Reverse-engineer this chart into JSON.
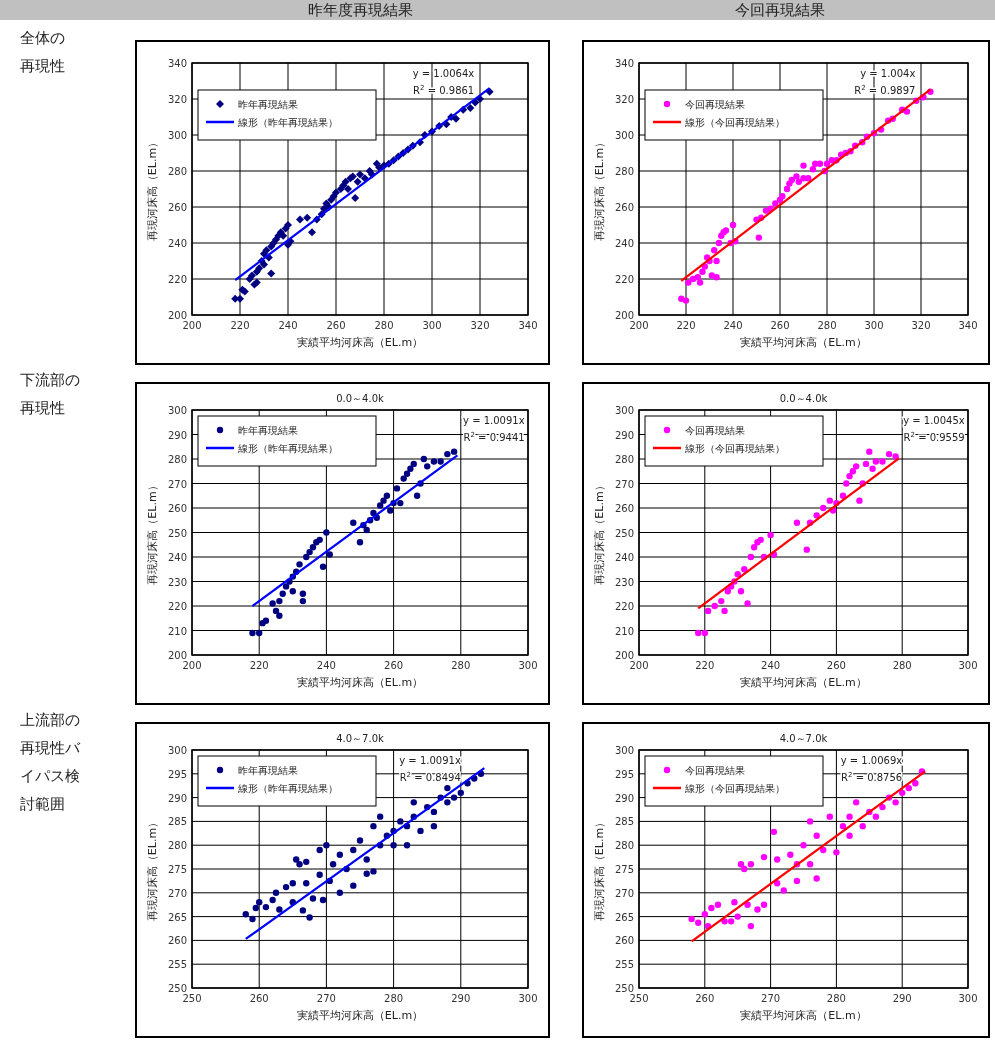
{
  "chart_data": [
    {
      "type": "scatter",
      "xlabel": "実績平均河床高（EL.m）",
      "ylabel": "再現河床高（EL.m）",
      "xlim": [
        200,
        340
      ],
      "ylim": [
        200,
        340
      ],
      "xticks": [
        200,
        220,
        240,
        260,
        280,
        300,
        320,
        340
      ],
      "yticks": [
        200,
        220,
        240,
        260,
        280,
        300,
        320,
        340
      ],
      "grid": true,
      "legend": "top left",
      "annotations": [
        "y = 1.0064x",
        "R$^{2}$ = 0.9861",
        "昨年度再現結果",
        "全体の再現性"
      ],
      "series": [
        {
          "name": "昨年再現結果",
          "type": "scatter",
          "marker": "diamond",
          "color": "#000080",
          "x": [
            218,
            220,
            221,
            222,
            224,
            225,
            226,
            227,
            227,
            228,
            229,
            230,
            230,
            231,
            232,
            233,
            233,
            234,
            235,
            236,
            237,
            238,
            239,
            240,
            241,
            240,
            245,
            248,
            250,
            252,
            254,
            255,
            256,
            257,
            258,
            259,
            260,
            262,
            263,
            264,
            265,
            266,
            267,
            268,
            269,
            270,
            272,
            274,
            275,
            277,
            278,
            280,
            282,
            284,
            286,
            288,
            290,
            292,
            295,
            297,
            300,
            303,
            306,
            308,
            310,
            313,
            316,
            318,
            320,
            324
          ],
          "values": [
            209,
            209,
            214,
            213,
            220,
            222,
            217,
            218,
            224,
            226,
            230,
            228,
            234,
            236,
            232,
            238,
            223,
            240,
            242,
            244,
            246,
            244,
            248,
            250,
            241,
            239,
            253,
            254,
            246,
            253,
            256,
            259,
            262,
            260,
            264,
            266,
            268,
            270,
            272,
            274,
            270,
            276,
            277,
            265,
            274,
            278,
            276,
            280,
            278,
            284,
            282,
            283,
            284,
            286,
            288,
            290,
            292,
            294,
            296,
            300,
            302,
            305,
            306,
            310,
            309,
            314,
            315,
            318,
            320,
            324
          ]
        },
        {
          "name": "線形（昨年再現結果）",
          "type": "line",
          "color": "#0000ff",
          "x": [
            218,
            324
          ],
          "values": [
            219.4,
            326.1
          ]
        }
      ]
    },
    {
      "type": "scatter",
      "xlabel": "実績平均河床高（EL.m）",
      "ylabel": "再現河床高（EL.m）",
      "xlim": [
        200,
        340
      ],
      "ylim": [
        200,
        340
      ],
      "xticks": [
        200,
        220,
        240,
        260,
        280,
        300,
        320,
        340
      ],
      "yticks": [
        200,
        220,
        240,
        260,
        280,
        300,
        320,
        340
      ],
      "grid": true,
      "legend": "top left",
      "annotations": [
        "y = 1.004x",
        "R$^{2}$ = 0.9897",
        "今回再現結果"
      ],
      "series": [
        {
          "name": "今回再現結果",
          "type": "scatter",
          "marker": "circle",
          "color": "#ff00ff",
          "x": [
            218,
            220,
            221,
            223,
            225,
            226,
            227,
            228,
            229,
            230,
            231,
            232,
            233,
            233,
            234,
            235,
            236,
            237,
            239,
            240,
            241,
            250,
            251,
            252,
            254,
            256,
            258,
            260,
            261,
            263,
            264,
            265,
            267,
            268,
            270,
            270,
            272,
            274,
            275,
            277,
            279,
            280,
            282,
            284,
            286,
            288,
            290,
            292,
            295,
            297,
            300,
            303,
            306,
            308,
            312,
            314,
            318,
            321,
            324
          ],
          "values": [
            209,
            208,
            218,
            220,
            221,
            218,
            224,
            227,
            232,
            230,
            222,
            236,
            221,
            230,
            240,
            244,
            246,
            247,
            240,
            250,
            241,
            253,
            243,
            254,
            258,
            259,
            262,
            264,
            266,
            270,
            273,
            275,
            277,
            274,
            283,
            276,
            276,
            281,
            284,
            284,
            280,
            284,
            286,
            286,
            289,
            290,
            291,
            294,
            296,
            299,
            301,
            303,
            308,
            309,
            314,
            313,
            319,
            321,
            324
          ]
        },
        {
          "name": "線形（今回再現結果）",
          "type": "line",
          "color": "#ff0000",
          "x": [
            218,
            324
          ],
          "values": [
            218.9,
            325.3
          ]
        }
      ]
    },
    {
      "type": "scatter",
      "title": "0.0～4.0k",
      "xlabel": "実績平均河床高（EL.m）",
      "ylabel": "再現河床高（EL.m）",
      "xlim": [
        200,
        300
      ],
      "ylim": [
        200,
        300
      ],
      "xticks": [
        200,
        220,
        240,
        260,
        280,
        300
      ],
      "yticks": [
        200,
        210,
        220,
        230,
        240,
        250,
        260,
        270,
        280,
        290,
        300
      ],
      "grid": true,
      "legend": "top left",
      "annotations": [
        "y = 1.0091x",
        "R$^{2}$ = 0.9441",
        "下流部の再現性"
      ],
      "series": [
        {
          "name": "昨年再現結果",
          "type": "scatter",
          "marker": "circle",
          "color": "#000080",
          "x": [
            218,
            220,
            221,
            222,
            224,
            225,
            226,
            226,
            227,
            228,
            229,
            230,
            230,
            231,
            232,
            233,
            233,
            234,
            235,
            236,
            237,
            238,
            239,
            240,
            241,
            248,
            250,
            251,
            252,
            253,
            254,
            255,
            256,
            257,
            258,
            259,
            260,
            261,
            262,
            263,
            264,
            265,
            266,
            267,
            268,
            269,
            270,
            272,
            274,
            276,
            278
          ],
          "values": [
            209,
            209,
            213,
            214,
            221,
            218,
            216,
            222,
            225,
            228,
            230,
            226,
            232,
            234,
            237,
            222,
            225,
            240,
            242,
            244,
            246,
            247,
            236,
            250,
            241,
            254,
            246,
            253,
            251,
            255,
            258,
            256,
            261,
            263,
            265,
            259,
            262,
            268,
            262,
            272,
            274,
            276,
            278,
            265,
            270,
            280,
            277,
            279,
            279,
            282,
            283
          ]
        },
        {
          "name": "線形（昨年再現結果）",
          "type": "line",
          "color": "#0000ff",
          "x": [
            218,
            279
          ],
          "values": [
            220.0,
            281.5
          ]
        }
      ]
    },
    {
      "type": "scatter",
      "title": "0.0～4.0k",
      "xlabel": "実績平均河床高（EL.m）",
      "ylabel": "再現河床高（EL.m）",
      "xlim": [
        200,
        300
      ],
      "ylim": [
        200,
        300
      ],
      "xticks": [
        200,
        220,
        240,
        260,
        280,
        300
      ],
      "yticks": [
        200,
        210,
        220,
        230,
        240,
        250,
        260,
        270,
        280,
        290,
        300
      ],
      "grid": true,
      "legend": "top left",
      "annotations": [
        "y = 1.0045x",
        "R$^{2}$ = 0.9559"
      ],
      "series": [
        {
          "name": "今回再現結果",
          "type": "scatter",
          "marker": "circle",
          "color": "#ff00ff",
          "x": [
            218,
            220,
            221,
            223,
            225,
            226,
            227,
            228,
            229,
            230,
            231,
            232,
            233,
            234,
            235,
            236,
            237,
            238,
            240,
            241,
            248,
            251,
            252,
            254,
            256,
            258,
            259,
            260,
            262,
            263,
            264,
            265,
            266,
            267,
            268,
            269,
            270,
            271,
            272,
            274,
            276,
            278
          ],
          "values": [
            209,
            209,
            218,
            220,
            222,
            218,
            226,
            228,
            230,
            233,
            226,
            235,
            221,
            240,
            244,
            246,
            247,
            240,
            249,
            241,
            254,
            243,
            254,
            257,
            260,
            263,
            259,
            262,
            265,
            270,
            273,
            275,
            277,
            263,
            270,
            278,
            283,
            276,
            279,
            279,
            282,
            281
          ]
        },
        {
          "name": "線形（今回再現結果）",
          "type": "line",
          "color": "#ff0000",
          "x": [
            218,
            279
          ],
          "values": [
            219.0,
            280.3
          ]
        }
      ]
    },
    {
      "type": "scatter",
      "title": "4.0～7.0k",
      "xlabel": "実績平均河床高（EL.m）",
      "ylabel": "再現河床高（EL.m）",
      "xlim": [
        250,
        300
      ],
      "ylim": [
        250,
        300
      ],
      "xticks": [
        250,
        260,
        270,
        280,
        290,
        300
      ],
      "yticks": [
        250,
        255,
        260,
        265,
        270,
        275,
        280,
        285,
        290,
        295,
        300
      ],
      "grid": true,
      "legend": "top left",
      "annotations": [
        "y = 1.0091x",
        "R$^{2}$ = 0.8494",
        "上流部の再現性バイパス検討範囲"
      ],
      "series": [
        {
          "name": "昨年再現結果",
          "type": "scatter",
          "marker": "circle",
          "color": "#000080",
          "x": [
            258,
            259,
            259.5,
            260,
            261,
            262,
            262.5,
            263,
            264,
            265,
            265,
            265.5,
            266,
            266.5,
            267,
            267,
            267.5,
            268,
            269,
            269,
            269.5,
            270,
            270.5,
            271,
            272,
            272,
            273,
            274,
            274,
            275,
            276,
            276,
            277,
            277,
            278,
            278,
            279,
            280,
            280,
            281,
            282,
            282,
            283,
            283,
            284,
            285,
            286,
            286,
            287,
            288,
            288,
            289,
            290,
            291,
            292,
            293
          ],
          "values": [
            265.5,
            264.5,
            266.8,
            268,
            267,
            268.5,
            270,
            266.5,
            271.2,
            272,
            268,
            277,
            276,
            266.3,
            272,
            276.5,
            264.8,
            268.8,
            279,
            273.8,
            268.5,
            280,
            272.5,
            276,
            270,
            278,
            275,
            271.5,
            279,
            281,
            277,
            274,
            284,
            274.5,
            286,
            280,
            282,
            283,
            280,
            285,
            284,
            280,
            289,
            286,
            283,
            288,
            287,
            284,
            290,
            289,
            292,
            290,
            291,
            293,
            294,
            295
          ]
        },
        {
          "name": "線形（昨年再現結果）",
          "type": "line",
          "color": "#0000ff",
          "x": [
            258,
            293.5
          ],
          "values": [
            260.3,
            296.2
          ]
        }
      ]
    },
    {
      "type": "scatter",
      "title": "4.0～7.0k",
      "xlabel": "実績平均河床高（EL.m）",
      "ylabel": "再現河床高（EL.m）",
      "xlim": [
        250,
        300
      ],
      "ylim": [
        250,
        300
      ],
      "xticks": [
        250,
        260,
        270,
        280,
        290,
        300
      ],
      "yticks": [
        250,
        255,
        260,
        265,
        270,
        275,
        280,
        285,
        290,
        295,
        300
      ],
      "grid": true,
      "legend": "top left",
      "annotations": [
        "y = 1.0069x",
        "R$^{2}$ = 0.8756"
      ],
      "series": [
        {
          "name": "今回再現結果",
          "type": "scatter",
          "marker": "circle",
          "color": "#ff00ff",
          "x": [
            258,
            259,
            260,
            260.5,
            261,
            262,
            263,
            264,
            264.5,
            265,
            265.5,
            266,
            266.5,
            267,
            267,
            268,
            269,
            269,
            270.5,
            271,
            271,
            272,
            273,
            274,
            274,
            275,
            276,
            276,
            277,
            277,
            278,
            279,
            280,
            281,
            282,
            282,
            283,
            284,
            285,
            286,
            287,
            288,
            289,
            290,
            291,
            292,
            293
          ],
          "values": [
            264.5,
            263.7,
            265.5,
            263,
            266.8,
            267.5,
            264,
            264,
            268,
            265,
            276,
            275,
            267.5,
            276,
            263,
            266.5,
            277.5,
            267.5,
            282.8,
            272,
            277,
            270.5,
            278,
            276,
            272.5,
            280,
            285,
            276,
            273,
            282,
            279,
            286,
            278.5,
            284,
            286,
            282,
            289,
            284,
            287,
            286,
            288,
            290,
            289,
            291,
            292,
            293,
            295.5
          ]
        },
        {
          "name": "線形（今回再現結果）",
          "type": "line",
          "color": "#ff0000",
          "x": [
            258,
            293.5
          ],
          "values": [
            259.8,
            295.5
          ]
        }
      ]
    }
  ]
}
